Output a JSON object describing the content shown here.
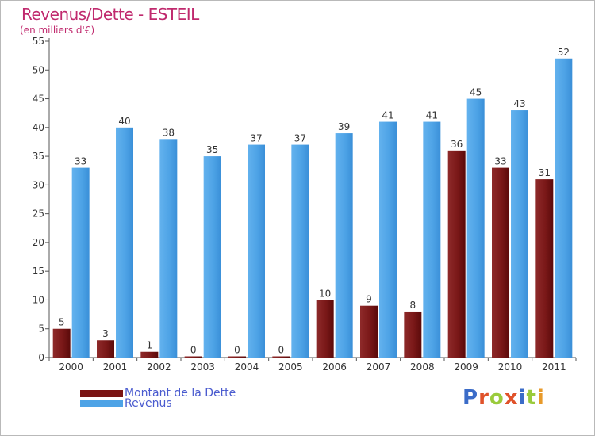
{
  "chart_data": {
    "type": "bar",
    "title": "Revenus/Dette - ESTEIL",
    "subtitle": "(en milliers d'€)",
    "categories": [
      "2000",
      "2001",
      "2002",
      "2003",
      "2004",
      "2005",
      "2006",
      "2007",
      "2008",
      "2009",
      "2010",
      "2011"
    ],
    "series": [
      {
        "name": "Montant de la Dette",
        "color": "#7a1414",
        "values": [
          5,
          3,
          1,
          0,
          0,
          0,
          10,
          9,
          8,
          36,
          33,
          31
        ]
      },
      {
        "name": "Revenus",
        "color": "#4ea3e6",
        "values": [
          33,
          40,
          38,
          35,
          37,
          37,
          39,
          41,
          41,
          45,
          43,
          52
        ]
      }
    ],
    "ylim": [
      0,
      55
    ],
    "yticks": [
      0,
      5,
      10,
      15,
      20,
      25,
      30,
      35,
      40,
      45,
      50,
      55
    ],
    "grid": false,
    "legend_position": "bottom-left"
  },
  "brand": {
    "logo_text": "Proxiti"
  }
}
